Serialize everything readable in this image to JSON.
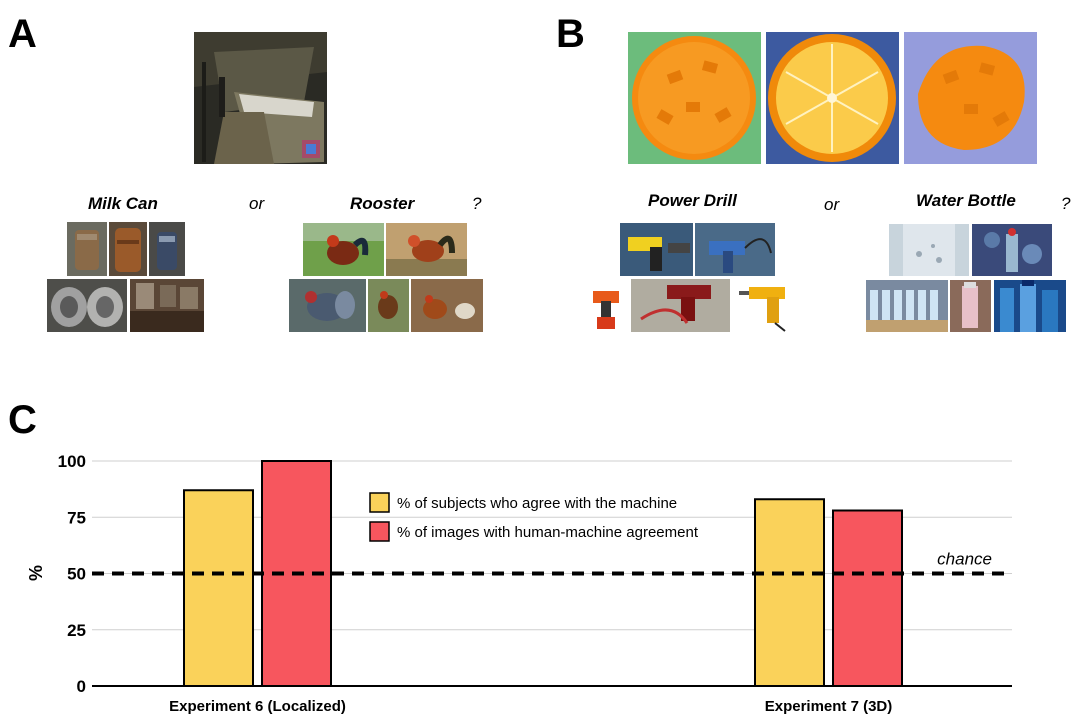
{
  "panels": {
    "a": "A",
    "b": "B",
    "c": "C"
  },
  "panel_a": {
    "class1": "Milk Can",
    "or": "or",
    "class2": "Rooster",
    "q": "?"
  },
  "panel_b": {
    "class1": "Power Drill",
    "or": "or",
    "class2": "Water Bottle",
    "q": "?"
  },
  "colors": {
    "yellow": "#FAD25A",
    "red": "#F7565E",
    "grid": "#cfcfcf"
  },
  "chart_data": {
    "type": "bar",
    "categories": [
      "Experiment 6 (Localized)",
      "Experiment 7 (3D)"
    ],
    "series": [
      {
        "name": "% of subjects who agree with the machine",
        "values": [
          87,
          83
        ]
      },
      {
        "name": "% of images with human-machine agreement",
        "values": [
          100,
          78
        ]
      }
    ],
    "ylabel": "%",
    "ylim": [
      0,
      100
    ],
    "yticks": [
      0,
      25,
      50,
      75,
      100
    ],
    "chance_level": 50,
    "chance_label": "chance",
    "grid": true,
    "legend": "top-center"
  }
}
